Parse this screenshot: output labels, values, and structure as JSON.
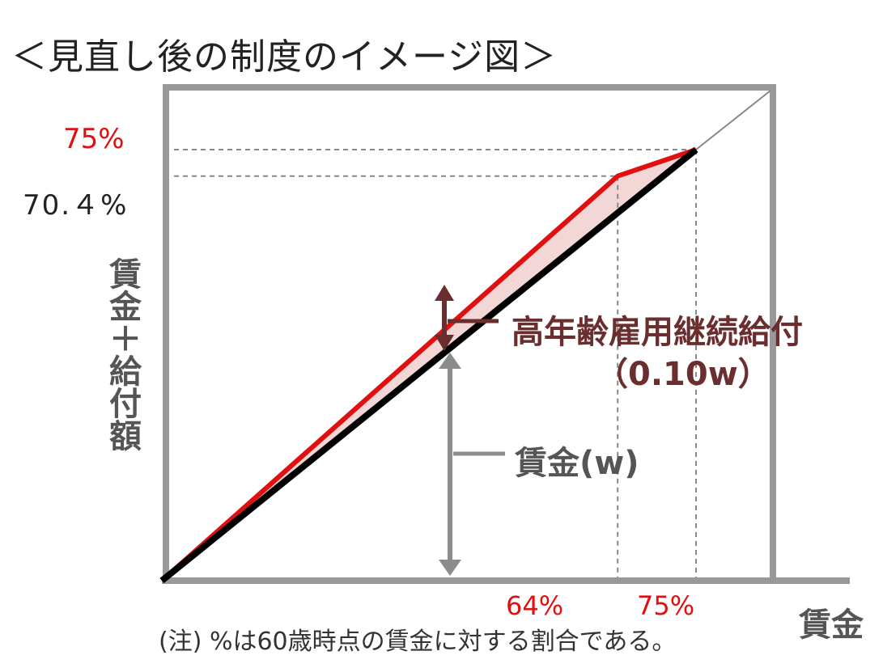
{
  "title": "＜見直し後の制度のイメージ図＞",
  "y_axis_title": "賃金＋給付額",
  "x_axis_title": "賃金",
  "note": "(注) %は60歳時点の賃金に対する割合である。",
  "y_ticks": {
    "top": "75%",
    "second": "70.４%"
  },
  "x_ticks": {
    "first": "64%",
    "second": "75%"
  },
  "annotations": {
    "benefit": "高年齢雇用継続給付",
    "benefit_rate": "（0.10w）",
    "wage": "賃金(w)"
  },
  "colors": {
    "benefit_line": "#e01010",
    "wage_line": "#000000",
    "fill": "#f3d6d6",
    "benefit_text": "#6b2e2e",
    "axis": "#999999"
  },
  "chart_data": {
    "type": "line",
    "series": [
      {
        "values": [
          [
            0,
            0
          ],
          [
            64,
            70.4
          ],
          [
            75,
            75
          ]
        ]
      },
      {
        "values": [
          [
            0,
            0
          ],
          [
            75,
            75
          ]
        ]
      }
    ],
    "xlim": [
      0,
      75
    ],
    "ylim": [
      0,
      75
    ]
  }
}
